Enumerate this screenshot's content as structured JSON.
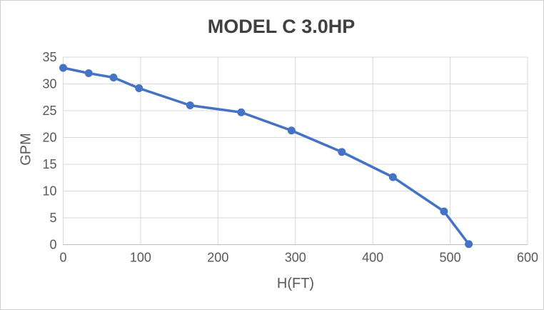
{
  "chart_data": {
    "type": "line",
    "title": "MODEL C 3.0HP",
    "xlabel": "H(FT)",
    "ylabel": "GPM",
    "xlim": [
      0,
      600
    ],
    "ylim": [
      0,
      35
    ],
    "x_ticks": [
      0,
      100,
      200,
      300,
      400,
      500,
      600
    ],
    "y_ticks": [
      0,
      5,
      10,
      15,
      20,
      25,
      30,
      35
    ],
    "grid": true,
    "legend": false,
    "series": [
      {
        "name": "MODEL C 3.0HP",
        "x": [
          0,
          33,
          65,
          98,
          164,
          230,
          295,
          360,
          426,
          492,
          524
        ],
        "y": [
          33,
          32,
          31.2,
          29.2,
          26,
          24.7,
          21.3,
          17.3,
          12.6,
          6.2,
          0.1
        ],
        "marker": "circle"
      }
    ]
  },
  "colors": {
    "series_line": "#4472C4",
    "marker_fill": "#4472C4",
    "gridline": "#D9D9D9",
    "axis_line": "#BFBFBF",
    "tick_text": "#595959",
    "axis_title_text": "#595959",
    "title_text": "#404040",
    "border": "#CFCFCF",
    "background": "#FFFFFF"
  }
}
